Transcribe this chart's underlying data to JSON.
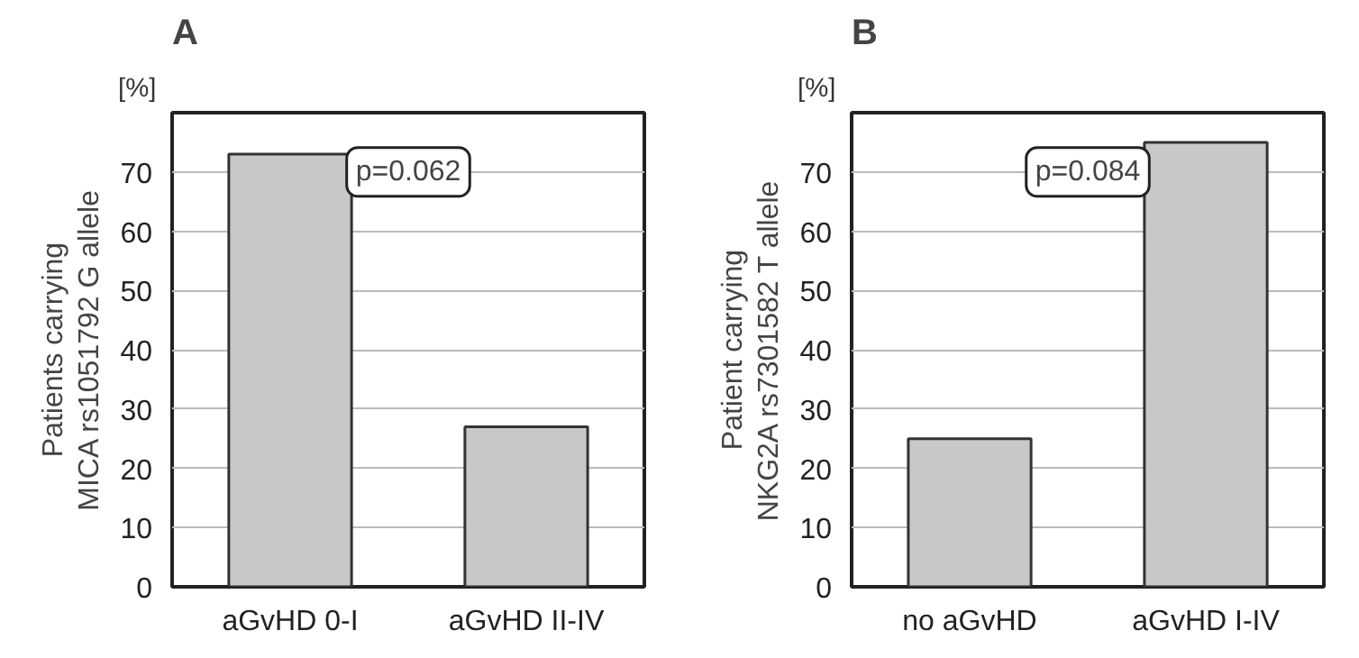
{
  "chart_data": [
    {
      "type": "bar",
      "title": "A",
      "ylabel": "Patients carrying\nMICA rs1051792 G allele",
      "categories": [
        "aGvHD 0-I",
        "aGvHD II-IV"
      ],
      "values": [
        73,
        27
      ],
      "color": "#c8c8c8",
      "ylim": [
        0,
        80
      ],
      "yticks": [
        0,
        10,
        20,
        30,
        40,
        50,
        60,
        70
      ],
      "grid": "y",
      "annotations": [
        "[%]",
        "p=0.062"
      ]
    },
    {
      "type": "bar",
      "title": "B",
      "ylabel": "Patient carrying\nNKG2A rs7301582 T allele",
      "categories": [
        "no aGvHD",
        "aGvHD I-IV"
      ],
      "values": [
        25,
        75
      ],
      "color": "#c8c8c8",
      "ylim": [
        0,
        80
      ],
      "yticks": [
        0,
        10,
        20,
        30,
        40,
        50,
        60,
        70
      ],
      "grid": "y",
      "annotations": [
        "[%]",
        "p=0.084"
      ]
    }
  ]
}
